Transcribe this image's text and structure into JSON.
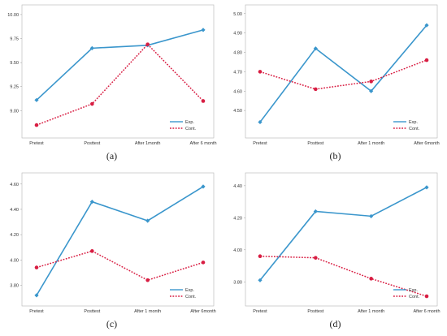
{
  "colors": {
    "exp": "#3a96cc",
    "cont": "#d81d42",
    "axis": "#999999",
    "frame": "#b5b5b5"
  },
  "legend": {
    "exp": "Exp.",
    "cont": "Cont."
  },
  "chart_data": [
    {
      "type": "line",
      "caption": "(a)",
      "categories": [
        "Pretest",
        "Posttest",
        "After 1month",
        "After 6 month"
      ],
      "ylim": [
        8.8,
        10.05
      ],
      "yticks": [
        "9.00",
        "9.25",
        "9.50",
        "9.75",
        "10.00"
      ],
      "series": [
        {
          "name": "Exp.",
          "values": [
            9.11,
            9.65,
            9.68,
            9.84
          ]
        },
        {
          "name": "Cont.",
          "values": [
            8.85,
            9.07,
            9.69,
            9.1
          ]
        }
      ],
      "legend_position": "bottom-right"
    },
    {
      "type": "line",
      "caption": "(b)",
      "categories": [
        "Pretest",
        "Posttest",
        "After 1 month",
        "After 6month"
      ],
      "ylim": [
        4.4,
        5.02
      ],
      "yticks": [
        "4.50",
        "4.60",
        "4.70",
        "4.80",
        "4.90",
        "5.00"
      ],
      "series": [
        {
          "name": "Exp.",
          "values": [
            4.44,
            4.82,
            4.6,
            4.94
          ]
        },
        {
          "name": "Cont.",
          "values": [
            4.7,
            4.61,
            4.65,
            4.76
          ]
        }
      ],
      "legend_position": "bottom-right"
    },
    {
      "type": "line",
      "caption": "(c)",
      "categories": [
        "Pretest",
        "Posttest",
        "After 1 month",
        "After 6month"
      ],
      "ylim": [
        3.7,
        4.65
      ],
      "yticks": [
        "3.80",
        "4.00",
        "4.20",
        "4.40",
        "4.60"
      ],
      "series": [
        {
          "name": "Exp.",
          "values": [
            3.72,
            4.46,
            4.31,
            4.58
          ]
        },
        {
          "name": "Cont.",
          "values": [
            3.94,
            4.07,
            3.84,
            3.98
          ]
        }
      ],
      "legend_position": "bottom-right"
    },
    {
      "type": "line",
      "caption": "(d)",
      "categories": [
        "Pretest",
        "Posttest",
        "After 1 month",
        "After 6 month"
      ],
      "ylim": [
        3.7,
        4.45
      ],
      "yticks": [
        "3.80",
        "4.00",
        "4.20",
        "4.40"
      ],
      "series": [
        {
          "name": "Exp.",
          "values": [
            3.81,
            4.24,
            4.21,
            4.39
          ]
        },
        {
          "name": "Cont.",
          "values": [
            3.96,
            3.95,
            3.82,
            3.71
          ]
        }
      ],
      "legend_position": "bottom-right"
    }
  ]
}
